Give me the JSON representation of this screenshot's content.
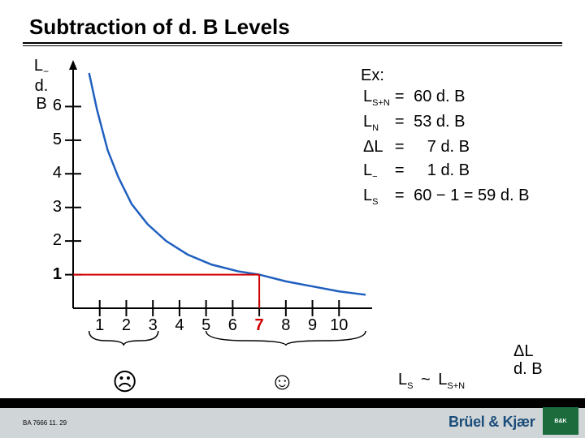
{
  "title": "Subtraction of d. B Levels",
  "y_axis_label_top": "L",
  "y_axis_label_sub": "−",
  "y_axis_unit": "d. B",
  "x_axis_label_top": "ΔL",
  "x_axis_unit": "d. B",
  "chart": {
    "type": "line",
    "x_min": 0,
    "x_max": 11,
    "y_min": 0,
    "y_max": 7,
    "x_ticks": [
      1,
      2,
      3,
      4,
      5,
      6,
      7,
      8,
      9,
      10
    ],
    "y_ticks": [
      1,
      2,
      3,
      4,
      5,
      6
    ],
    "y_tick_label_bold": 1,
    "x_tick_highlight": 7,
    "x_tick_highlight_color": "#d00000",
    "marker_x": 7,
    "marker_y": 1,
    "marker_color": "#d00000",
    "axis_color": "#000000",
    "axis_width": 2,
    "curve_color": "#1f5fbf",
    "curve_width": 2.5,
    "curve_points": [
      [
        0.6,
        7.0
      ],
      [
        0.9,
        5.9
      ],
      [
        1.3,
        4.7
      ],
      [
        1.7,
        3.9
      ],
      [
        2.2,
        3.1
      ],
      [
        2.8,
        2.5
      ],
      [
        3.5,
        2.0
      ],
      [
        4.3,
        1.6
      ],
      [
        5.2,
        1.3
      ],
      [
        6.2,
        1.1
      ],
      [
        7.0,
        1.0
      ],
      [
        8.0,
        0.8
      ],
      [
        9.0,
        0.65
      ],
      [
        10.0,
        0.5
      ],
      [
        11.0,
        0.4
      ]
    ],
    "brace_left_range": [
      0.6,
      3.2
    ],
    "brace_right_range": [
      5.0,
      11.0
    ]
  },
  "faces": {
    "sad": "☹",
    "happy": "☺"
  },
  "example": {
    "header": "Ex:",
    "rows": [
      {
        "sym": "L",
        "sub": "S+N",
        "eq": "=",
        "val": " 60 d. B"
      },
      {
        "sym": "L",
        "sub": "N",
        "eq": "=",
        "val": " 53 d. B"
      },
      {
        "sym": "ΔL",
        "sub": "",
        "eq": "=",
        "val": "    7 d. B"
      },
      {
        "sym": "L",
        "sub": "−",
        "eq": "=",
        "val": "    1 d. B"
      },
      {
        "sym": "L",
        "sub": "S",
        "eq": "=",
        "val": " 60 − 1 = 59 d. B"
      }
    ]
  },
  "ls_relation": {
    "left_sym": "L",
    "left_sub": "S",
    "tilde": "~",
    "right_sym": "L",
    "right_sub": "S+N"
  },
  "footnote": "BA 7666 11. 29",
  "brand": "Brüel & Kjær",
  "colors": {
    "background": "#ffffff",
    "title_rule": "#000000",
    "footer_bar": "#000000",
    "footer_gray": "#d0d5d8",
    "brand_color": "#1b4d7a",
    "brand_logo_bg": "#1b6b3d"
  },
  "typography": {
    "title_fontsize": 26,
    "body_fontsize": 20,
    "sub_fontsize": 11,
    "face_fontsize": 30,
    "footnote_fontsize": 8
  }
}
